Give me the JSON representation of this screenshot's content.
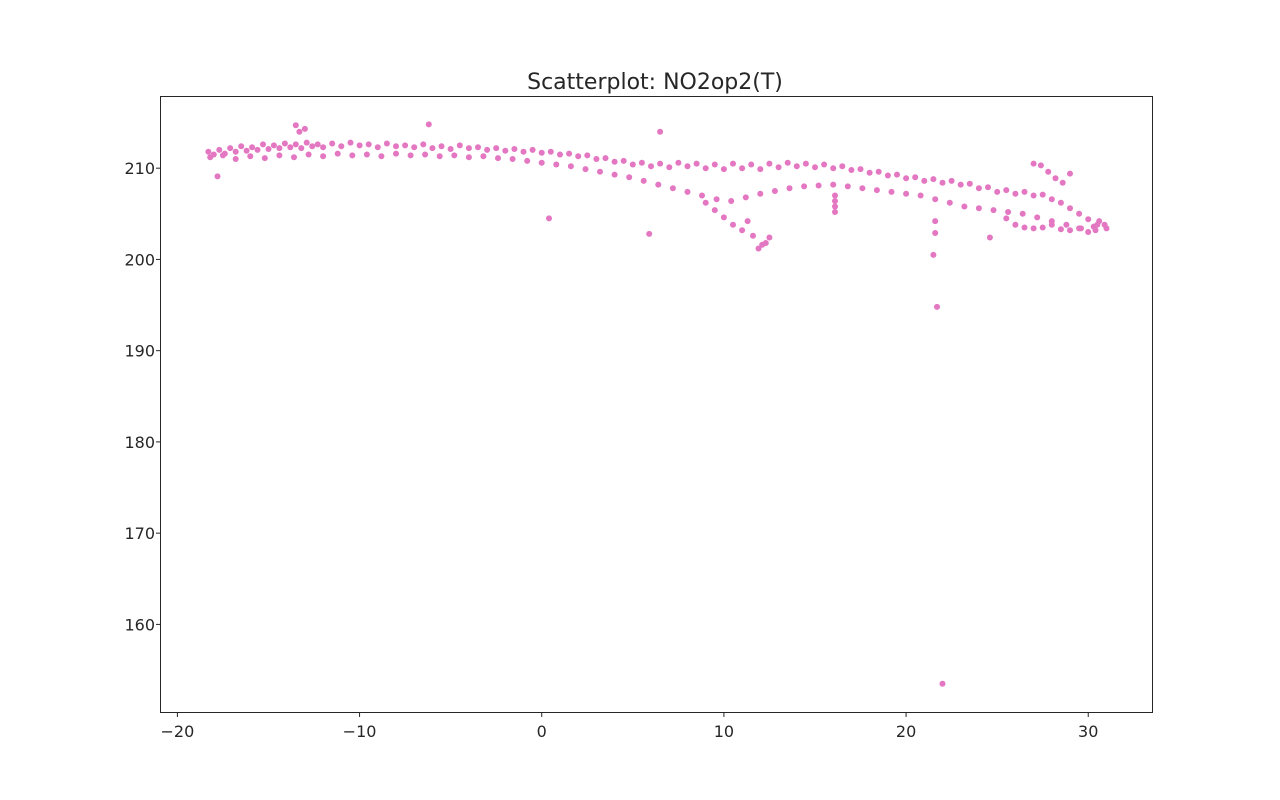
{
  "chart_data": {
    "type": "scatter",
    "title": "Scatterplot: NO2op2(T)",
    "xlabel": "",
    "ylabel": "",
    "xlim": [
      -20.9,
      33.5
    ],
    "ylim": [
      150.4,
      217.8
    ],
    "xticks": [
      -20,
      -10,
      0,
      10,
      20,
      30
    ],
    "xtick_labels": [
      "−20",
      "−10",
      "0",
      "10",
      "20",
      "30"
    ],
    "yticks": [
      160,
      170,
      180,
      190,
      200,
      210
    ],
    "ytick_labels": [
      "160",
      "170",
      "180",
      "190",
      "200",
      "210"
    ],
    "grid": false,
    "legend": "none",
    "marker_color": "#e377c2",
    "series": [
      {
        "x": [
          -18.3,
          -18.0,
          -17.7,
          -17.4,
          -17.1,
          -16.8,
          -16.5,
          -16.2,
          -15.9,
          -15.6,
          -15.3,
          -15.0,
          -14.7,
          -14.4,
          -14.1,
          -13.8,
          -13.5,
          -13.2,
          -12.9,
          -12.6,
          -12.3,
          -12.0,
          -11.5,
          -11.0,
          -10.5,
          -10.0,
          -9.5,
          -9.0,
          -8.5,
          -8.0,
          -7.5,
          -7.0,
          -6.5,
          -6.0,
          -5.5,
          -5.0,
          -4.5,
          -4.0,
          -3.5,
          -3.0,
          -2.5,
          -2.0,
          -1.5,
          -1.0,
          -0.5,
          0.0,
          0.5,
          1.0,
          1.5,
          2.0,
          2.5,
          3.0,
          3.5,
          4.0,
          4.5,
          5.0,
          5.5,
          6.0,
          6.5,
          7.0,
          7.5,
          8.0,
          8.5,
          9.0,
          9.5,
          10.0,
          10.5,
          11.0,
          11.5,
          12.0,
          12.5,
          13.0,
          13.5,
          14.0,
          14.5,
          15.0,
          15.5,
          16.0,
          16.5,
          17.0,
          17.5,
          18.0,
          18.5,
          19.0,
          19.5,
          20.0,
          20.5,
          21.0,
          21.5,
          22.0,
          22.5,
          23.0,
          23.5,
          24.0,
          24.5,
          25.0,
          25.5,
          26.0,
          26.5,
          27.0,
          27.5,
          28.0,
          28.5,
          29.0,
          29.5,
          30.0,
          30.5,
          31.0,
          -18.2,
          -17.5,
          -16.8,
          -16.0,
          -15.2,
          -14.4,
          -13.6,
          -12.8,
          -12.0,
          -11.2,
          -10.4,
          -9.6,
          -8.8,
          -8.0,
          -7.2,
          -6.4,
          -5.6,
          -4.8,
          -4.0,
          -3.2,
          -2.4,
          -1.6,
          -0.8,
          0.0,
          0.8,
          1.6,
          2.4,
          3.2,
          4.0,
          4.8,
          5.6,
          6.4,
          7.2,
          8.0,
          8.8,
          9.6,
          10.4,
          11.2,
          12.0,
          12.8,
          13.6,
          14.4,
          15.2,
          16.0,
          16.8,
          17.6,
          18.4,
          19.2,
          20.0,
          20.8,
          21.6,
          22.4,
          23.2,
          24.0,
          24.8,
          25.6,
          26.4,
          27.2,
          28.0,
          28.8,
          29.6,
          30.4,
          -17.8,
          -13.5,
          -13.3,
          -13.0,
          -6.2,
          0.4,
          5.9,
          6.5,
          9.0,
          9.5,
          10.0,
          10.5,
          11.0,
          11.3,
          11.6,
          11.9,
          12.1,
          12.3,
          12.5,
          16.1,
          16.1,
          16.1,
          16.1,
          21.5,
          21.6,
          21.6,
          21.7,
          22.0,
          24.6,
          25.5,
          26.0,
          26.5,
          27.0,
          27.5,
          28.0,
          28.5,
          29.0,
          29.5,
          30.0,
          30.3,
          30.6,
          30.9,
          29.0,
          28.6,
          28.2,
          27.8,
          27.4,
          27.0
        ],
        "y": [
          211.8,
          211.5,
          212.0,
          211.6,
          212.2,
          211.8,
          212.4,
          211.9,
          212.3,
          212.0,
          212.6,
          212.1,
          212.5,
          212.2,
          212.7,
          212.3,
          212.6,
          212.2,
          212.8,
          212.4,
          212.6,
          212.3,
          212.7,
          212.4,
          212.8,
          212.5,
          212.6,
          212.3,
          212.7,
          212.4,
          212.5,
          212.3,
          212.6,
          212.2,
          212.4,
          212.1,
          212.5,
          212.2,
          212.3,
          212.0,
          212.2,
          211.9,
          212.1,
          211.8,
          212.0,
          211.7,
          211.8,
          211.5,
          211.6,
          211.3,
          211.4,
          211.0,
          211.1,
          210.7,
          210.8,
          210.4,
          210.6,
          210.2,
          210.5,
          210.1,
          210.6,
          210.2,
          210.5,
          210.0,
          210.4,
          209.9,
          210.5,
          210.0,
          210.4,
          209.9,
          210.5,
          210.1,
          210.6,
          210.2,
          210.5,
          210.1,
          210.4,
          210.0,
          210.2,
          209.8,
          209.9,
          209.5,
          209.6,
          209.2,
          209.3,
          208.9,
          209.0,
          208.6,
          208.8,
          208.4,
          208.6,
          208.2,
          208.3,
          207.8,
          207.9,
          207.4,
          207.6,
          207.2,
          207.4,
          207.0,
          207.1,
          206.6,
          206.2,
          205.6,
          205.0,
          204.4,
          203.8,
          203.4,
          211.2,
          211.4,
          211.0,
          211.3,
          211.1,
          211.4,
          211.2,
          211.5,
          211.3,
          211.6,
          211.4,
          211.5,
          211.3,
          211.6,
          211.4,
          211.5,
          211.3,
          211.4,
          211.2,
          211.3,
          211.1,
          211.0,
          210.8,
          210.6,
          210.4,
          210.2,
          209.9,
          209.6,
          209.3,
          209.0,
          208.6,
          208.2,
          207.8,
          207.4,
          207.0,
          206.6,
          206.4,
          206.8,
          207.2,
          207.5,
          207.8,
          208.0,
          208.1,
          208.2,
          208.0,
          207.8,
          207.6,
          207.4,
          207.2,
          207.0,
          206.6,
          206.2,
          205.8,
          205.6,
          205.4,
          205.2,
          205.0,
          204.6,
          204.2,
          203.8,
          203.4,
          203.2,
          209.1,
          214.7,
          214.0,
          214.3,
          214.8,
          204.5,
          202.8,
          214.0,
          206.2,
          205.4,
          204.6,
          203.8,
          203.2,
          204.2,
          202.6,
          201.2,
          201.6,
          201.8,
          202.4,
          207.0,
          206.4,
          205.8,
          205.2,
          200.5,
          202.9,
          204.2,
          194.8,
          153.5,
          202.4,
          204.5,
          203.8,
          203.5,
          203.4,
          203.5,
          203.8,
          203.3,
          203.2,
          203.4,
          203.0,
          203.6,
          204.2,
          203.8,
          209.4,
          208.4,
          208.9,
          209.6,
          210.3,
          210.5
        ]
      }
    ]
  }
}
